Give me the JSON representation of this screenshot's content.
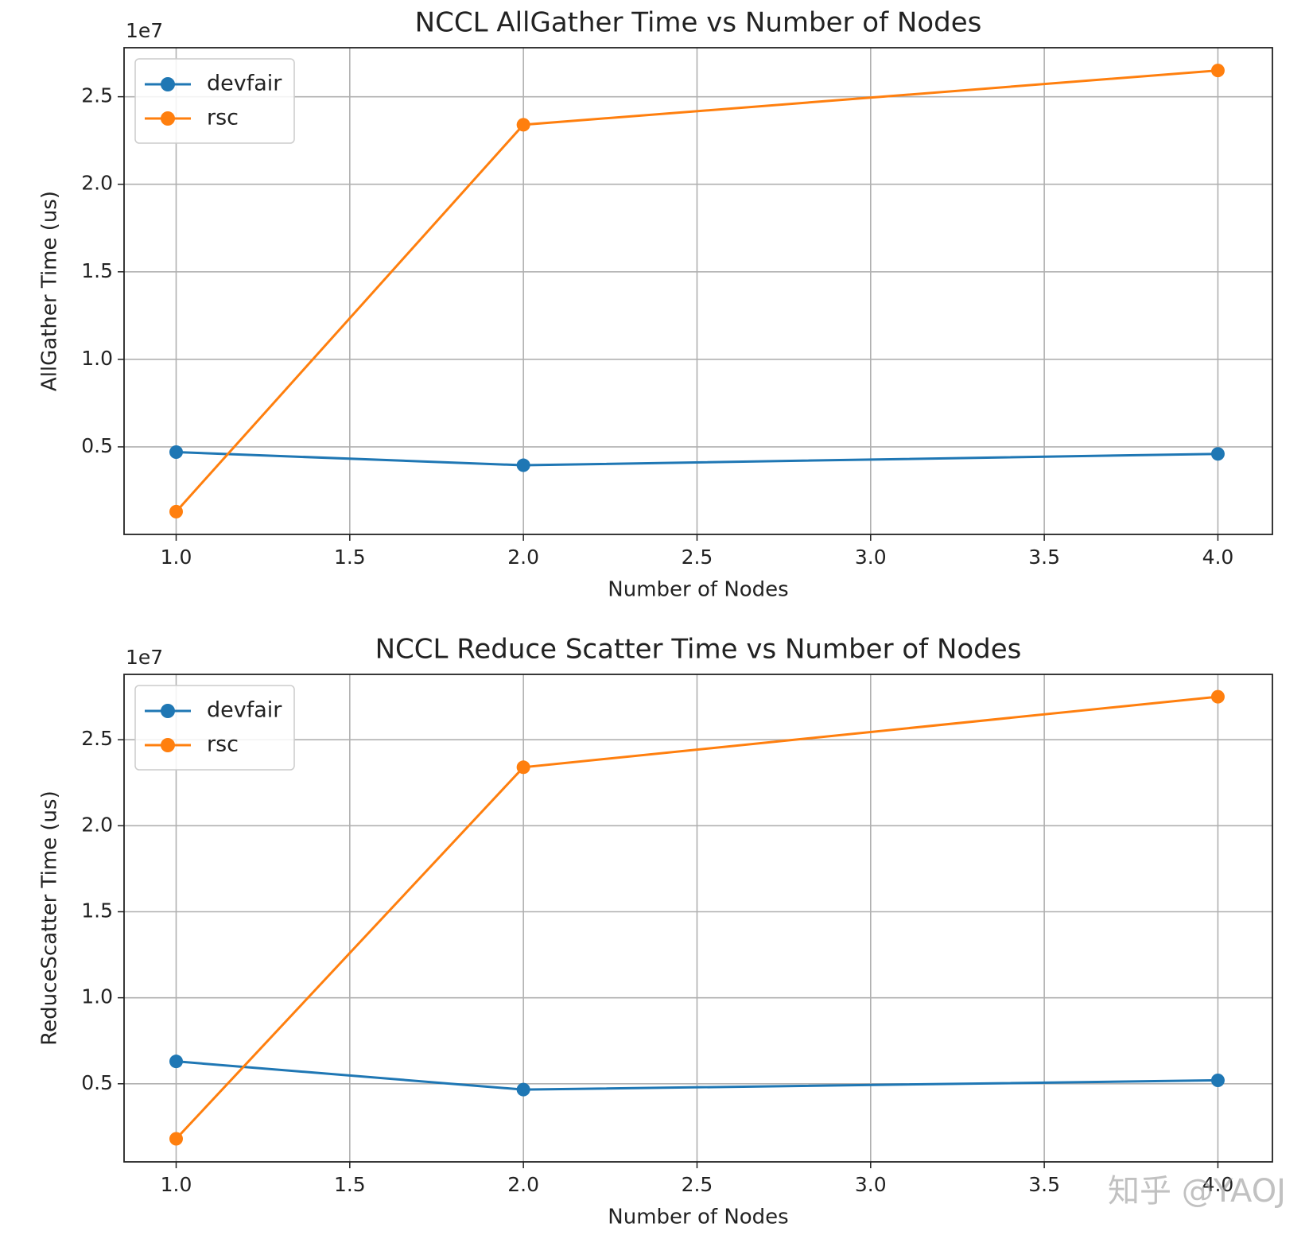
{
  "chart_data": [
    {
      "type": "line",
      "title": "NCCL AllGather Time vs Number of Nodes",
      "x_label": "Number of Nodes",
      "y_label": "AllGather Time (us)",
      "y_offset_label": "1e7",
      "x": [
        1,
        2,
        4
      ],
      "series": [
        {
          "name": "devfair",
          "color": "#1f77b4",
          "values": [
            0.47,
            0.395,
            0.46
          ]
        },
        {
          "name": "rsc",
          "color": "#ff7f0e",
          "values": [
            0.13,
            2.34,
            2.65
          ]
        }
      ],
      "xlim": [
        0.85,
        4.157
      ],
      "ylim": [
        0.0,
        2.78
      ],
      "xticks": [
        {
          "value": 1,
          "label": "1.0"
        },
        {
          "value": 1.5,
          "label": "1.5"
        },
        {
          "value": 2,
          "label": "2.0"
        },
        {
          "value": 2.5,
          "label": "2.5"
        },
        {
          "value": 3,
          "label": "3.0"
        },
        {
          "value": 3.5,
          "label": "3.5"
        },
        {
          "value": 4,
          "label": "4.0"
        }
      ],
      "yticks": [
        {
          "value": 0.5,
          "label": "0.5"
        },
        {
          "value": 1,
          "label": "1.0"
        },
        {
          "value": 1.5,
          "label": "1.5"
        },
        {
          "value": 2,
          "label": "2.0"
        },
        {
          "value": 2.5,
          "label": "2.5"
        }
      ],
      "grid": true,
      "legend": "upper-left"
    },
    {
      "type": "line",
      "title": "NCCL Reduce Scatter Time vs Number of Nodes",
      "x_label": "Number of Nodes",
      "y_label": "ReduceScatter Time (us)",
      "y_offset_label": "1e7",
      "x": [
        1,
        2,
        4
      ],
      "series": [
        {
          "name": "devfair",
          "color": "#1f77b4",
          "values": [
            0.63,
            0.466,
            0.52
          ]
        },
        {
          "name": "rsc",
          "color": "#ff7f0e",
          "values": [
            0.18,
            2.34,
            2.75
          ]
        }
      ],
      "xlim": [
        0.85,
        4.157
      ],
      "ylim": [
        0.046,
        2.88
      ],
      "xticks": [
        {
          "value": 1,
          "label": "1.0"
        },
        {
          "value": 1.5,
          "label": "1.5"
        },
        {
          "value": 2,
          "label": "2.0"
        },
        {
          "value": 2.5,
          "label": "2.5"
        },
        {
          "value": 3,
          "label": "3.0"
        },
        {
          "value": 3.5,
          "label": "3.5"
        },
        {
          "value": 4,
          "label": "4.0"
        }
      ],
      "yticks": [
        {
          "value": 0.5,
          "label": "0.5"
        },
        {
          "value": 1,
          "label": "1.0"
        },
        {
          "value": 1.5,
          "label": "1.5"
        },
        {
          "value": 2,
          "label": "2.0"
        },
        {
          "value": 2.5,
          "label": "2.5"
        }
      ],
      "grid": true,
      "legend": "upper-left"
    }
  ],
  "watermark": "知乎 @YAOJ"
}
